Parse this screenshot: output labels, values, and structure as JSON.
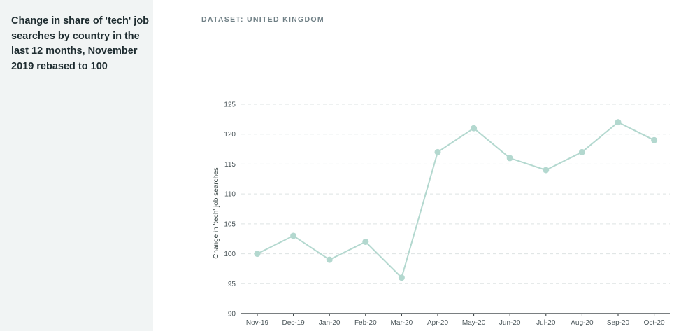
{
  "sidebar": {
    "title": "Change in share of 'tech' job searches by country in the last 12 months, November 2019 rebased to 100"
  },
  "dataset": {
    "label": "DATASET: UNITED KINGDOM"
  },
  "chart_data": {
    "type": "line",
    "categories": [
      "Nov-19",
      "Dec-19",
      "Jan-20",
      "Feb-20",
      "Mar-20",
      "Apr-20",
      "May-20",
      "Jun-20",
      "Jul-20",
      "Aug-20",
      "Sep-20",
      "Oct-20"
    ],
    "values": [
      100,
      103,
      99,
      102,
      96,
      117,
      121,
      116,
      114,
      117,
      122,
      119
    ],
    "title": "",
    "xlabel": "",
    "ylabel": "Change in 'tech' job searches",
    "ylim": [
      90,
      125
    ],
    "yticks": [
      90,
      95,
      100,
      105,
      110,
      115,
      120,
      125
    ],
    "grid": true,
    "colors": {
      "line": "#b3d8cf",
      "grid": "#dde3e3",
      "axis": "#2b3336",
      "text": "#4a5559"
    }
  }
}
